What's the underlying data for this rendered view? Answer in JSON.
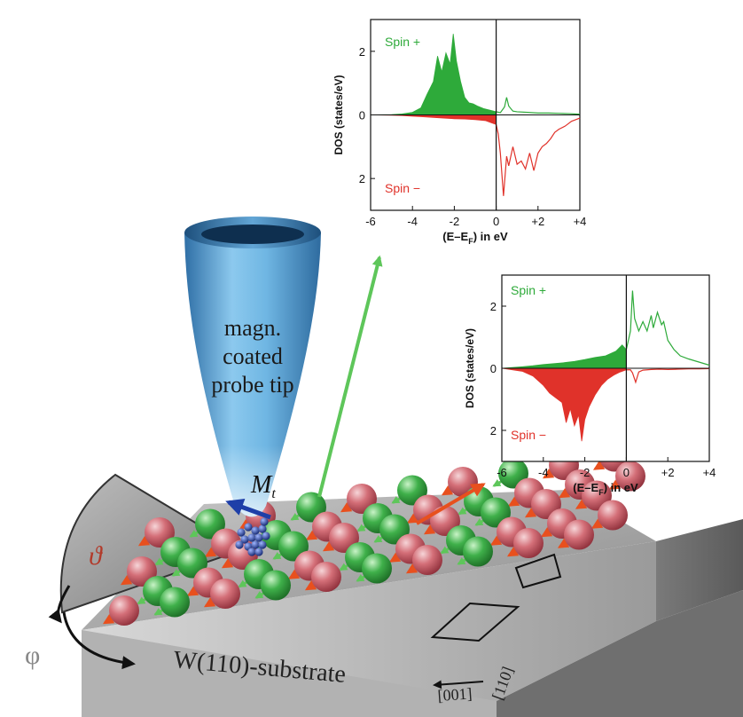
{
  "colors": {
    "spin_up": "#2eaa3a",
    "spin_down": "#e0322a",
    "tip_blue": "#5aa7d8",
    "substrate": "#8d8d8d",
    "atom_red": "#cf6b73",
    "atom_green": "#3fb04a",
    "arrow_orange": "#e8501e",
    "beam_green": "#5ec65a"
  },
  "tip": {
    "label_line1": "magn.",
    "label_line2": "coated",
    "label_line3": "probe tip",
    "moment_label": "M",
    "moment_sub": "t"
  },
  "substrate": {
    "label": "W(110)-substrate",
    "dir_001": "[001]",
    "dir_110": "[110]"
  },
  "angles": {
    "theta": "ϑ",
    "phi": "φ"
  },
  "chart_data": [
    {
      "type": "area",
      "ylabel": "DOS (states/eV)",
      "xlabel_main": "(E–E",
      "xlabel_sub": "F",
      "xlabel_tail": ") in eV",
      "xlim": [
        -6,
        4
      ],
      "ylim": [
        -3,
        3
      ],
      "x_ticks": [
        "-6",
        "-4",
        "-2",
        "0",
        "+2",
        "+4"
      ],
      "y_ticks": [
        "2",
        "0",
        "2"
      ],
      "series": [
        {
          "name": "Spin +",
          "x": [
            -6,
            -5,
            -4.5,
            -4,
            -3.6,
            -3.3,
            -3.0,
            -2.8,
            -2.6,
            -2.4,
            -2.2,
            -2.05,
            -1.9,
            -1.7,
            -1.5,
            -1.3,
            -1.1,
            -0.9,
            -0.6,
            -0.3,
            0,
            0.2,
            0.4,
            0.5,
            0.6,
            0.8,
            1.0,
            1.5,
            2,
            2.5,
            3,
            3.5,
            4
          ],
          "values": [
            0,
            0.01,
            0.03,
            0.08,
            0.22,
            0.65,
            1.05,
            1.85,
            1.35,
            1.95,
            1.6,
            2.55,
            1.7,
            1.05,
            0.55,
            0.38,
            0.35,
            0.28,
            0.2,
            0.15,
            0.1,
            0.07,
            0.25,
            0.55,
            0.28,
            0.12,
            0.1,
            0.08,
            0.06,
            0.06,
            0.05,
            0.04,
            0.02
          ]
        },
        {
          "name": "Spin −",
          "x": [
            -6,
            -5,
            -4.5,
            -4,
            -3.5,
            -3,
            -2.5,
            -2,
            -1.5,
            -1,
            -0.5,
            0,
            0.1,
            0.2,
            0.35,
            0.5,
            0.6,
            0.8,
            1.0,
            1.2,
            1.4,
            1.6,
            1.8,
            2.0,
            2.2,
            2.4,
            2.6,
            2.8,
            3.0,
            3.3,
            3.6,
            4
          ],
          "values": [
            0,
            -0.01,
            -0.02,
            -0.04,
            -0.06,
            -0.08,
            -0.1,
            -0.12,
            -0.13,
            -0.15,
            -0.18,
            -0.3,
            -0.6,
            -1.2,
            -2.55,
            -1.3,
            -1.6,
            -1.0,
            -1.55,
            -1.45,
            -1.7,
            -1.2,
            -1.75,
            -1.2,
            -1.0,
            -0.9,
            -0.75,
            -0.55,
            -0.45,
            -0.35,
            -0.2,
            -0.1
          ]
        }
      ]
    },
    {
      "type": "area",
      "ylabel": "DOS (states/eV)",
      "xlabel_main": "(E–E",
      "xlabel_sub": "F",
      "xlabel_tail": ") in eV",
      "xlim": [
        -6,
        4
      ],
      "ylim": [
        -3,
        3
      ],
      "x_ticks": [
        "-6",
        "-4",
        "-2",
        "0",
        "+2",
        "+4"
      ],
      "y_ticks": [
        "2",
        "0",
        "2"
      ],
      "series": [
        {
          "name": "Spin +",
          "x": [
            -6,
            -5,
            -4.5,
            -4,
            -3.5,
            -3,
            -2.5,
            -2,
            -1.5,
            -1,
            -0.5,
            -0.2,
            0,
            0.2,
            0.3,
            0.4,
            0.6,
            0.8,
            1.0,
            1.2,
            1.3,
            1.5,
            1.7,
            1.8,
            2.0,
            2.3,
            2.6,
            3.0,
            3.5,
            4
          ],
          "values": [
            0,
            0.05,
            0.08,
            0.12,
            0.15,
            0.18,
            0.22,
            0.28,
            0.35,
            0.4,
            0.55,
            0.75,
            0.6,
            1.2,
            2.5,
            1.6,
            1.2,
            1.5,
            1.2,
            1.7,
            1.3,
            1.8,
            1.4,
            1.5,
            0.9,
            0.6,
            0.4,
            0.3,
            0.2,
            0.1
          ]
        },
        {
          "name": "Spin −",
          "x": [
            -6,
            -5,
            -4.5,
            -4,
            -3.7,
            -3.4,
            -3.1,
            -2.9,
            -2.7,
            -2.5,
            -2.3,
            -2.15,
            -2.0,
            -1.8,
            -1.5,
            -1.2,
            -0.9,
            -0.6,
            -0.3,
            0,
            0.2,
            0.3,
            0.45,
            0.6,
            0.8,
            1.2,
            1.6,
            2.0,
            2.5,
            3,
            3.5,
            4
          ],
          "values": [
            0,
            -0.1,
            -0.25,
            -0.55,
            -0.8,
            -0.95,
            -1.1,
            -1.75,
            -1.3,
            -1.85,
            -1.5,
            -2.35,
            -1.65,
            -1.25,
            -0.85,
            -0.55,
            -0.35,
            -0.22,
            -0.12,
            -0.05,
            -0.05,
            -0.15,
            -0.45,
            -0.12,
            -0.06,
            -0.04,
            -0.03,
            -0.04,
            -0.03,
            -0.02,
            -0.02,
            -0.01
          ]
        }
      ]
    }
  ]
}
